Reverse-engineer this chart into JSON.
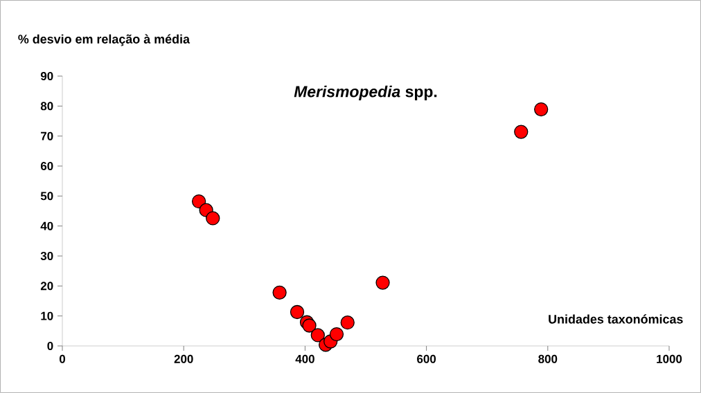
{
  "chart_data": {
    "type": "scatter",
    "title": "*Merismopedia* spp.",
    "ylabel": "% desvio em relação à média",
    "xlabel": "Unidades taxonómicas",
    "x": [
      225,
      237,
      248,
      358,
      387,
      403,
      407,
      421,
      434,
      442,
      452,
      470,
      528,
      756,
      789
    ],
    "values": [
      48.2,
      45.3,
      42.6,
      17.8,
      11.3,
      7.9,
      6.8,
      3.6,
      0.4,
      1.5,
      3.9,
      7.8,
      21.1,
      71.4,
      78.9
    ],
    "color": "#ff0000",
    "marker": "circle",
    "xlim": [
      0,
      1000
    ],
    "xticks": [
      0,
      200,
      400,
      600,
      800,
      1000
    ],
    "ylim": [
      0,
      90
    ],
    "yticks": [
      0,
      10,
      20,
      30,
      40,
      50,
      60,
      70,
      80,
      90
    ],
    "grid": false
  }
}
